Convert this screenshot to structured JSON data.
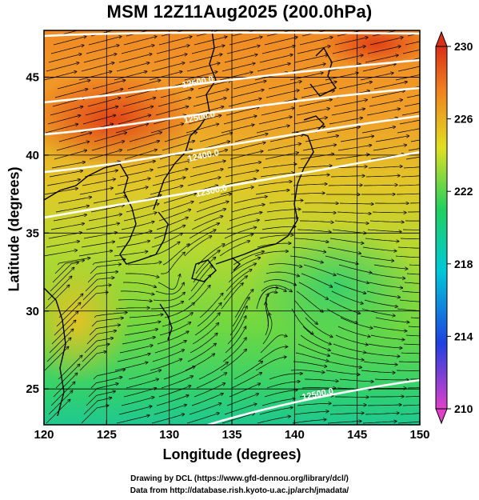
{
  "title": "MSM 12Z11Aug2025 (200.0hPa)",
  "axes": {
    "xlabel": "Longitude (degrees)",
    "ylabel": "Latitude  (degrees)",
    "xticks": [
      "120",
      "125",
      "130",
      "135",
      "140",
      "145",
      "150"
    ],
    "yticks": [
      "25",
      "30",
      "35",
      "40",
      "45"
    ]
  },
  "colorbar": {
    "ticks": [
      "210",
      "214",
      "218",
      "222",
      "226",
      "230"
    ],
    "colors": [
      "#e040c8",
      "#2040e0",
      "#00c8d8",
      "#20d060",
      "#e0e020",
      "#e86020",
      "#d83018"
    ]
  },
  "contours": [
    "12600.0",
    "12500.0",
    "12400.0",
    "12300.0",
    "12500.0"
  ],
  "credits": {
    "line1": "Drawing by DCL (https://www.gfd-dennou.org/library/dcl/)",
    "line2": "Data from http://database.rish.kyoto-u.ac.jp/arch/jmadata/"
  }
}
